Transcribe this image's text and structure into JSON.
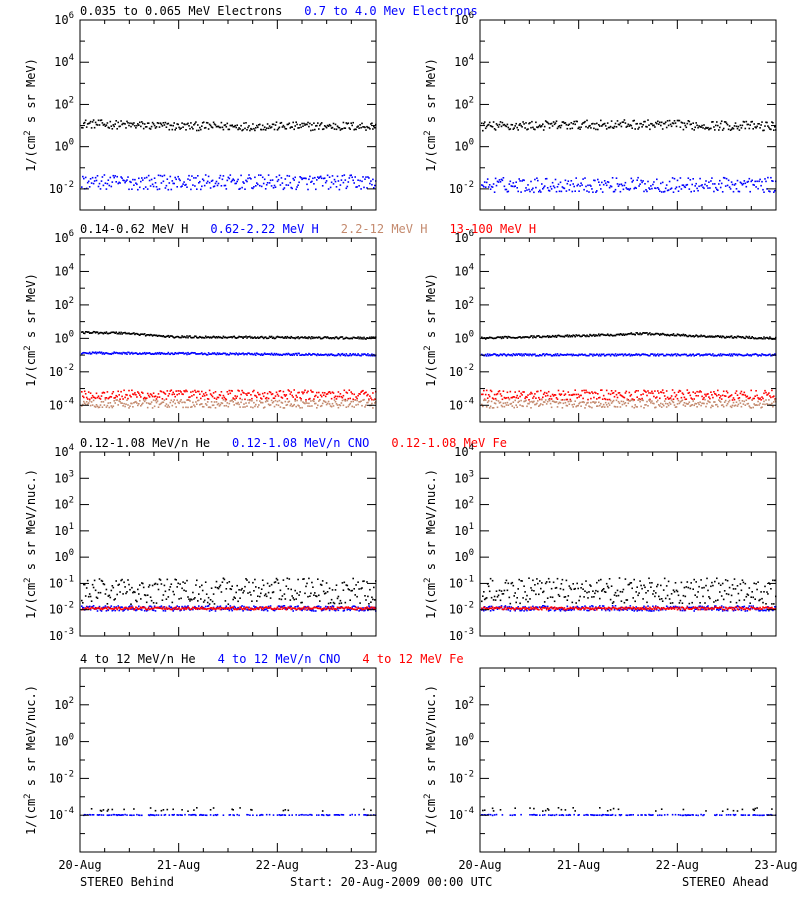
{
  "colors": {
    "black": "#000000",
    "blue": "#0000ff",
    "tan": "#c48a6e",
    "red": "#ff0000"
  },
  "footer": {
    "left": "STEREO Behind",
    "center": "Start: 20-Aug-2009 00:00 UTC",
    "right": "STEREO Ahead"
  },
  "chart_data": [
    {
      "type": "scatter",
      "panel": "electrons",
      "legend": [
        {
          "text": "0.035 to 0.065 MeV Electrons",
          "color": "#000000"
        },
        {
          "text": "0.7 to 4.0 Mev Electrons",
          "color": "#0000ff"
        }
      ],
      "ylabel": "1/(cm2 s sr MeV)",
      "yscale": "log",
      "ylim": [
        0.001,
        1000000
      ],
      "yticks": [
        {
          "value": 0.01,
          "mantissa": "10",
          "exp": "-2"
        },
        {
          "value": 1,
          "mantissa": "10",
          "exp": "0"
        },
        {
          "value": 100,
          "mantissa": "10",
          "exp": "2"
        },
        {
          "value": 10000,
          "mantissa": "10",
          "exp": "4"
        },
        {
          "value": 1000000,
          "mantissa": "10",
          "exp": "6"
        }
      ],
      "x_ticks": [
        "20-Aug",
        "21-Aug",
        "22-Aug",
        "23-Aug"
      ],
      "series": {
        "behind": [
          {
            "color": "#000000",
            "level": 10,
            "noise": 0.2,
            "trend": [
              [
                0,
                12
              ],
              [
                0.3,
                9
              ],
              [
                1,
                9
              ]
            ]
          },
          {
            "color": "#0000ff",
            "level": 0.02,
            "noise": 0.35,
            "trend": [
              [
                0,
                0.02
              ],
              [
                1,
                0.02
              ]
            ]
          }
        ],
        "ahead": [
          {
            "color": "#000000",
            "level": 9,
            "noise": 0.22,
            "trend": [
              [
                0,
                9
              ],
              [
                0.5,
                11
              ],
              [
                1,
                9
              ]
            ]
          },
          {
            "color": "#0000ff",
            "level": 0.015,
            "noise": 0.35,
            "trend": [
              [
                0,
                0.015
              ],
              [
                1,
                0.015
              ]
            ]
          }
        ]
      }
    },
    {
      "type": "scatter",
      "panel": "protons",
      "legend": [
        {
          "text": "0.14-0.62 MeV H",
          "color": "#000000"
        },
        {
          "text": "0.62-2.22 MeV H",
          "color": "#0000ff"
        },
        {
          "text": "2.2-12 MeV H",
          "color": "#c48a6e"
        },
        {
          "text": "13-100 MeV H",
          "color": "#ff0000"
        }
      ],
      "ylabel": "1/(cm2 s sr MeV)",
      "yscale": "log",
      "ylim": [
        1e-05,
        1000000
      ],
      "yticks": [
        {
          "value": 0.0001,
          "mantissa": "10",
          "exp": "-4"
        },
        {
          "value": 0.01,
          "mantissa": "10",
          "exp": "-2"
        },
        {
          "value": 1,
          "mantissa": "10",
          "exp": "0"
        },
        {
          "value": 100,
          "mantissa": "10",
          "exp": "2"
        },
        {
          "value": 10000,
          "mantissa": "10",
          "exp": "4"
        },
        {
          "value": 1000000,
          "mantissa": "10",
          "exp": "6"
        }
      ],
      "x_ticks": [
        "20-Aug",
        "21-Aug",
        "22-Aug",
        "23-Aug"
      ],
      "series": {
        "behind": [
          {
            "color": "#000000",
            "level": 1.2,
            "noise": 0.06,
            "trend": [
              [
                0,
                2.2
              ],
              [
                0.15,
                2
              ],
              [
                0.3,
                1.2
              ],
              [
                1,
                1
              ]
            ]
          },
          {
            "color": "#0000ff",
            "level": 0.1,
            "noise": 0.06,
            "trend": [
              [
                0,
                0.13
              ],
              [
                1,
                0.1
              ]
            ]
          },
          {
            "color": "#ff0000",
            "level": 0.0004,
            "noise": 0.3,
            "trend": [
              [
                0,
                0.0004
              ],
              [
                1,
                0.0004
              ]
            ]
          },
          {
            "color": "#c48a6e",
            "level": 0.00012,
            "noise": 0.25,
            "trend": [
              [
                0,
                0.00012
              ],
              [
                1,
                0.00012
              ]
            ]
          }
        ],
        "ahead": [
          {
            "color": "#000000",
            "level": 1,
            "noise": 0.06,
            "trend": [
              [
                0,
                1
              ],
              [
                0.45,
                1.6
              ],
              [
                0.55,
                1.9
              ],
              [
                0.75,
                1.3
              ],
              [
                1,
                1
              ]
            ]
          },
          {
            "color": "#0000ff",
            "level": 0.1,
            "noise": 0.06,
            "trend": [
              [
                0,
                0.1
              ],
              [
                1,
                0.1
              ]
            ]
          },
          {
            "color": "#ff0000",
            "level": 0.0004,
            "noise": 0.3,
            "trend": [
              [
                0,
                0.0004
              ],
              [
                1,
                0.0004
              ]
            ]
          },
          {
            "color": "#c48a6e",
            "level": 0.00012,
            "noise": 0.25,
            "trend": [
              [
                0,
                0.00012
              ],
              [
                1,
                0.00012
              ]
            ]
          }
        ]
      }
    },
    {
      "type": "scatter",
      "panel": "heavy-low",
      "legend": [
        {
          "text": "0.12-1.08 MeV/n He",
          "color": "#000000"
        },
        {
          "text": "0.12-1.08 MeV/n CNO",
          "color": "#0000ff"
        },
        {
          "text": "0.12-1.08 MeV Fe",
          "color": "#ff0000"
        }
      ],
      "ylabel": "1/(cm2 s sr MeV/nuc.)",
      "yscale": "log",
      "ylim": [
        0.001,
        10000
      ],
      "yticks": [
        {
          "value": 0.001,
          "mantissa": "10",
          "exp": "-3"
        },
        {
          "value": 0.01,
          "mantissa": "10",
          "exp": "-2"
        },
        {
          "value": 0.1,
          "mantissa": "10",
          "exp": "-1"
        },
        {
          "value": 1,
          "mantissa": "10",
          "exp": "0"
        },
        {
          "value": 10,
          "mantissa": "10",
          "exp": "1"
        },
        {
          "value": 100,
          "mantissa": "10",
          "exp": "2"
        },
        {
          "value": 1000,
          "mantissa": "10",
          "exp": "3"
        },
        {
          "value": 10000,
          "mantissa": "10",
          "exp": "4"
        }
      ],
      "x_ticks": [
        "20-Aug",
        "21-Aug",
        "22-Aug",
        "23-Aug"
      ],
      "series": {
        "behind": [
          {
            "color": "#000000",
            "level": 0.05,
            "noise": 0.5,
            "trend": [
              [
                0,
                0.05
              ],
              [
                1,
                0.05
              ]
            ]
          },
          {
            "color": "#0000ff",
            "level": 0.011,
            "noise": 0.1,
            "trend": [
              [
                0,
                0.011
              ],
              [
                1,
                0.011
              ]
            ]
          },
          {
            "color": "#ff0000",
            "level": 0.011,
            "noise": 0.05,
            "trend": [
              [
                0,
                0.011
              ],
              [
                1,
                0.011
              ]
            ]
          }
        ],
        "ahead": [
          {
            "color": "#000000",
            "level": 0.05,
            "noise": 0.5,
            "trend": [
              [
                0,
                0.05
              ],
              [
                1,
                0.05
              ]
            ]
          },
          {
            "color": "#0000ff",
            "level": 0.011,
            "noise": 0.1,
            "trend": [
              [
                0,
                0.011
              ],
              [
                1,
                0.011
              ]
            ]
          },
          {
            "color": "#ff0000",
            "level": 0.011,
            "noise": 0.05,
            "trend": [
              [
                0,
                0.011
              ],
              [
                1,
                0.011
              ]
            ]
          }
        ]
      }
    },
    {
      "type": "scatter",
      "panel": "heavy-high",
      "legend": [
        {
          "text": "4 to 12 MeV/n He",
          "color": "#000000"
        },
        {
          "text": "4 to 12 MeV/n CNO",
          "color": "#0000ff"
        },
        {
          "text": "4 to 12 MeV Fe",
          "color": "#ff0000"
        }
      ],
      "ylabel": "1/(cm2 s sr MeV/nuc.)",
      "yscale": "log",
      "ylim": [
        1e-06,
        10000
      ],
      "yticks": [
        {
          "value": 0.0001,
          "mantissa": "10",
          "exp": "-4"
        },
        {
          "value": 0.01,
          "mantissa": "10",
          "exp": "-2"
        },
        {
          "value": 1,
          "mantissa": "10",
          "exp": "0"
        },
        {
          "value": 100,
          "mantissa": "10",
          "exp": "2"
        }
      ],
      "x_ticks": [
        "20-Aug",
        "21-Aug",
        "22-Aug",
        "23-Aug"
      ],
      "series": {
        "behind": [
          {
            "color": "#0000ff",
            "level": 0.0001,
            "noise": 0.02,
            "trend": [
              [
                0,
                0.0001
              ],
              [
                1,
                0.0001
              ]
            ],
            "sparse": 0.5
          },
          {
            "color": "#000000",
            "level": 0.0002,
            "noise": 0.1,
            "trend": [
              [
                0,
                0.0002
              ],
              [
                1,
                0.0002
              ]
            ],
            "sparse": 0.1
          }
        ],
        "ahead": [
          {
            "color": "#0000ff",
            "level": 0.0001,
            "noise": 0.02,
            "trend": [
              [
                0,
                0.0001
              ],
              [
                1,
                0.0001
              ]
            ],
            "sparse": 0.5
          },
          {
            "color": "#000000",
            "level": 0.0002,
            "noise": 0.1,
            "trend": [
              [
                0,
                0.0002
              ],
              [
                1,
                0.0002
              ]
            ],
            "sparse": 0.1
          }
        ]
      }
    }
  ]
}
